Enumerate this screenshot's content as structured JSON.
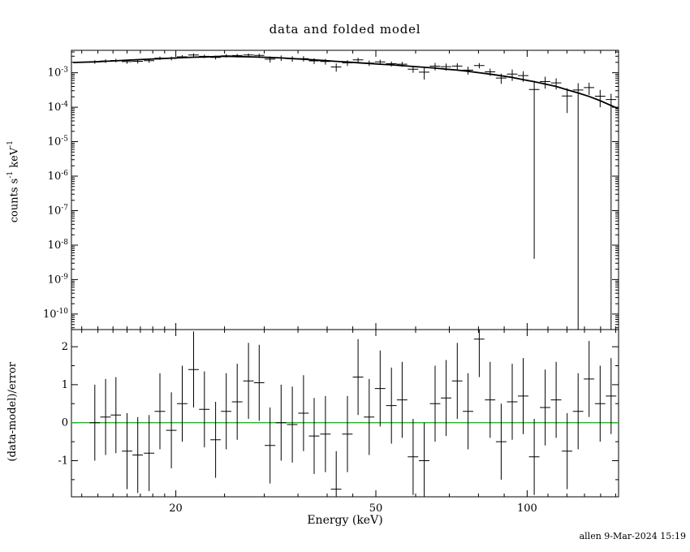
{
  "chart_data": {
    "type": "scatter",
    "title": "data and folded model",
    "xlabel": "Energy (keV)",
    "ylabel_bottom": "(data-model)/error",
    "ylabel_top_segments": [
      {
        "t": "counts s"
      },
      {
        "s": "-1"
      },
      {
        "t": " keV"
      },
      {
        "s": "-1"
      }
    ],
    "footer": "allen  9-Mar-2024 15:19",
    "x_scale": "log",
    "x_range": [
      12.4,
      152
    ],
    "top_y_log_range": [
      -10.45,
      -2.35
    ],
    "bottom_y_range": [
      -1.95,
      2.45
    ],
    "x_major_ticks": [
      {
        "v": 20,
        "label": "20"
      },
      {
        "v": 50,
        "label": "50"
      },
      {
        "v": 100,
        "label": "100"
      }
    ],
    "x_minor_ticks": [
      13,
      14,
      15,
      16,
      17,
      18,
      19,
      25,
      30,
      35,
      40,
      45,
      60,
      70,
      80,
      90,
      110,
      120,
      130,
      140,
      150
    ],
    "top_y_ticks": [
      {
        "exp": -3,
        "sup": "-3"
      },
      {
        "exp": -4,
        "sup": "-4"
      },
      {
        "exp": -5,
        "sup": "-5"
      },
      {
        "exp": -6,
        "sup": "-6"
      },
      {
        "exp": -7,
        "sup": "-7"
      },
      {
        "exp": -8,
        "sup": "-8"
      },
      {
        "exp": -9,
        "sup": "-9"
      },
      {
        "exp": -10,
        "sup": "-10"
      }
    ],
    "bottom_y_ticks": [
      {
        "v": 2,
        "label": "2"
      },
      {
        "v": 1,
        "label": "1"
      },
      {
        "v": 0,
        "label": "0"
      },
      {
        "v": -1,
        "label": "-1"
      }
    ],
    "bottom_y_minor_ticks": [
      -1.5,
      -0.5,
      0.5,
      1.5
    ],
    "colors": {
      "data": "#000000",
      "model": "#000000",
      "zero_line": "#00cc00",
      "background": "#ffffff"
    },
    "residual_error": 1,
    "spectrum": {
      "e": [
        13.8,
        14.5,
        15.2,
        16.0,
        16.8,
        17.7,
        18.6,
        19.6,
        20.6,
        21.7,
        22.8,
        24.0,
        25.2,
        26.5,
        27.9,
        29.3,
        30.8,
        32.4,
        34.1,
        35.9,
        37.7,
        39.7,
        41.7,
        43.9,
        46.1,
        48.5,
        51.0,
        53.7,
        56.4,
        59.3,
        62.4,
        65.6,
        69.0,
        72.6,
        76.3,
        80.3,
        84.4,
        88.8,
        93.4,
        98.2,
        103.3,
        108.6,
        114.2,
        120.1,
        126.3,
        132.8,
        139.7,
        146.9
      ],
      "ew": [
        0.33,
        0.35,
        0.36,
        0.38,
        0.4,
        0.42,
        0.45,
        0.47,
        0.49,
        0.52,
        0.55,
        0.57,
        0.6,
        0.64,
        0.67,
        0.7,
        0.74,
        0.78,
        0.82,
        0.86,
        0.9,
        0.95,
        1.0,
        1.05,
        1.1,
        1.16,
        1.22,
        1.29,
        1.35,
        1.42,
        1.5,
        1.57,
        1.65,
        1.74,
        1.83,
        1.92,
        2.02,
        2.13,
        2.24,
        2.35,
        2.47,
        2.6,
        2.74,
        2.88,
        3.03,
        3.18,
        3.35,
        3.52
      ],
      "y": [
        0.00207,
        0.00219,
        0.00227,
        0.0021,
        0.00215,
        0.00224,
        0.00265,
        0.0026,
        0.0029,
        0.00328,
        0.00299,
        0.00278,
        0.00311,
        0.00315,
        0.00327,
        0.00319,
        0.00248,
        0.00268,
        0.00255,
        0.00257,
        0.00221,
        0.00212,
        0.00147,
        0.00194,
        0.00237,
        0.00191,
        0.00206,
        0.00183,
        0.00177,
        0.00127,
        0.00104,
        0.00155,
        0.0015,
        0.00156,
        0.00119,
        0.00162,
        0.00106,
        0.000705,
        0.000911,
        0.000828,
        0.000327,
        0.000555,
        0.000508,
        0.000212,
        0.000315,
        0.00037,
        0.000209,
        0.000167
      ],
      "ylo": [
        0.00182,
        0.00193,
        0.00201,
        0.00183,
        0.00186,
        0.00194,
        0.00235,
        0.00228,
        0.00258,
        0.00295,
        0.00265,
        0.00243,
        0.00275,
        0.00279,
        0.00293,
        0.00285,
        0.00198,
        0.0022,
        0.00208,
        0.00213,
        0.00179,
        0.00172,
        0.00108,
        0.00157,
        0.00202,
        0.00158,
        0.00174,
        0.00152,
        0.00149,
        0.001,
        0.000634,
        0.00117,
        0.00115,
        0.00122,
        0.000884,
        0.00134,
        0.000808,
        0.000475,
        0.000582,
        0.000544,
        4e-09,
        0.000343,
        0.000328,
        6.8e-05,
        1e-12,
        0.000226,
        0.0001,
        1e-12
      ],
      "yhi": [
        0.00232,
        0.00245,
        0.00254,
        0.00238,
        0.00243,
        0.00254,
        0.00296,
        0.00292,
        0.00323,
        0.00362,
        0.00334,
        0.00313,
        0.00347,
        0.0035,
        0.00362,
        0.00353,
        0.00297,
        0.00316,
        0.00301,
        0.00301,
        0.00264,
        0.00252,
        0.00185,
        0.00231,
        0.00272,
        0.00225,
        0.00238,
        0.00213,
        0.00206,
        0.00155,
        0.00144,
        0.00193,
        0.00186,
        0.00189,
        0.0015,
        0.0019,
        0.00132,
        0.000935,
        0.00124,
        0.00111,
        0.000575,
        0.000767,
        0.000688,
        0.000356,
        0.000497,
        0.000514,
        0.000318,
        0.000245
      ]
    },
    "model": {
      "e": [
        12.5,
        13.8,
        14.5,
        15.2,
        16.0,
        16.8,
        17.7,
        18.6,
        19.6,
        20.6,
        21.7,
        22.8,
        24.0,
        25.2,
        26.5,
        27.9,
        29.3,
        30.8,
        32.4,
        34.1,
        35.9,
        37.7,
        39.7,
        41.7,
        43.9,
        46.1,
        48.5,
        51.0,
        53.7,
        56.4,
        59.3,
        62.4,
        65.6,
        69.0,
        72.6,
        76.3,
        80.3,
        84.4,
        88.8,
        93.4,
        98.2,
        103.3,
        108.6,
        114.2,
        120.1,
        126.3,
        132.8,
        139.7,
        146.9,
        151.5
      ],
      "y": [
        0.00198,
        0.00207,
        0.00215,
        0.00222,
        0.00231,
        0.00239,
        0.00248,
        0.00256,
        0.00266,
        0.00274,
        0.00281,
        0.00287,
        0.00294,
        0.003,
        0.00295,
        0.00289,
        0.00283,
        0.00277,
        0.00268,
        0.00257,
        0.00246,
        0.00236,
        0.00224,
        0.00214,
        0.00205,
        0.00195,
        0.00186,
        0.00177,
        0.00169,
        0.0016,
        0.00152,
        0.00144,
        0.00136,
        0.00127,
        0.00119,
        0.0011,
        0.001,
        0.00091,
        0.00082,
        0.00073,
        0.00063,
        0.00055,
        0.00047,
        0.0004,
        0.00032,
        0.00026,
        0.000205,
        0.000155,
        0.000112,
        9.2e-05
      ]
    },
    "residuals": {
      "note": "shares energy bins with spectrum; error bars are +/-1",
      "r": [
        0.0,
        0.15,
        0.2,
        -0.75,
        -0.85,
        -0.8,
        0.3,
        -0.2,
        0.5,
        1.4,
        0.35,
        -0.45,
        0.3,
        0.55,
        1.1,
        1.05,
        -0.6,
        0.0,
        -0.05,
        0.25,
        -0.35,
        -0.3,
        -1.75,
        -0.3,
        1.2,
        0.15,
        0.9,
        0.45,
        0.6,
        -0.9,
        -1.0,
        0.5,
        0.65,
        1.1,
        0.3,
        2.2,
        0.6,
        -0.5,
        0.55,
        0.7,
        -0.9,
        0.4,
        0.6,
        -0.75,
        0.3,
        1.15,
        0.5,
        0.7
      ]
    }
  }
}
